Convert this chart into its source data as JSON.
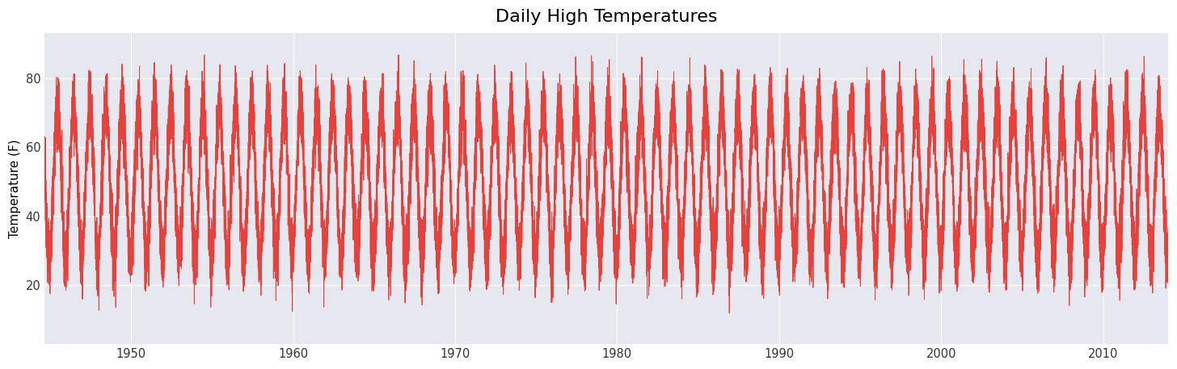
{
  "title": "Daily High Temperatures",
  "ylabel": "Temperature (F)",
  "start_year": 1944,
  "end_year": 2013,
  "line_color": "#e8413c",
  "background_color": "#e6e8f0",
  "fig_background": "#ffffff",
  "yticks": [
    20,
    40,
    60,
    80
  ],
  "ylim_min": 3,
  "ylim_max": 93,
  "mean_temp": 50,
  "amplitude": 22,
  "noise_std": 5,
  "linewidth": 0.7,
  "title_fontsize": 16,
  "label_fontsize": 11,
  "start_month": 9,
  "start_day": 1,
  "end_month": 12,
  "end_day": 31
}
